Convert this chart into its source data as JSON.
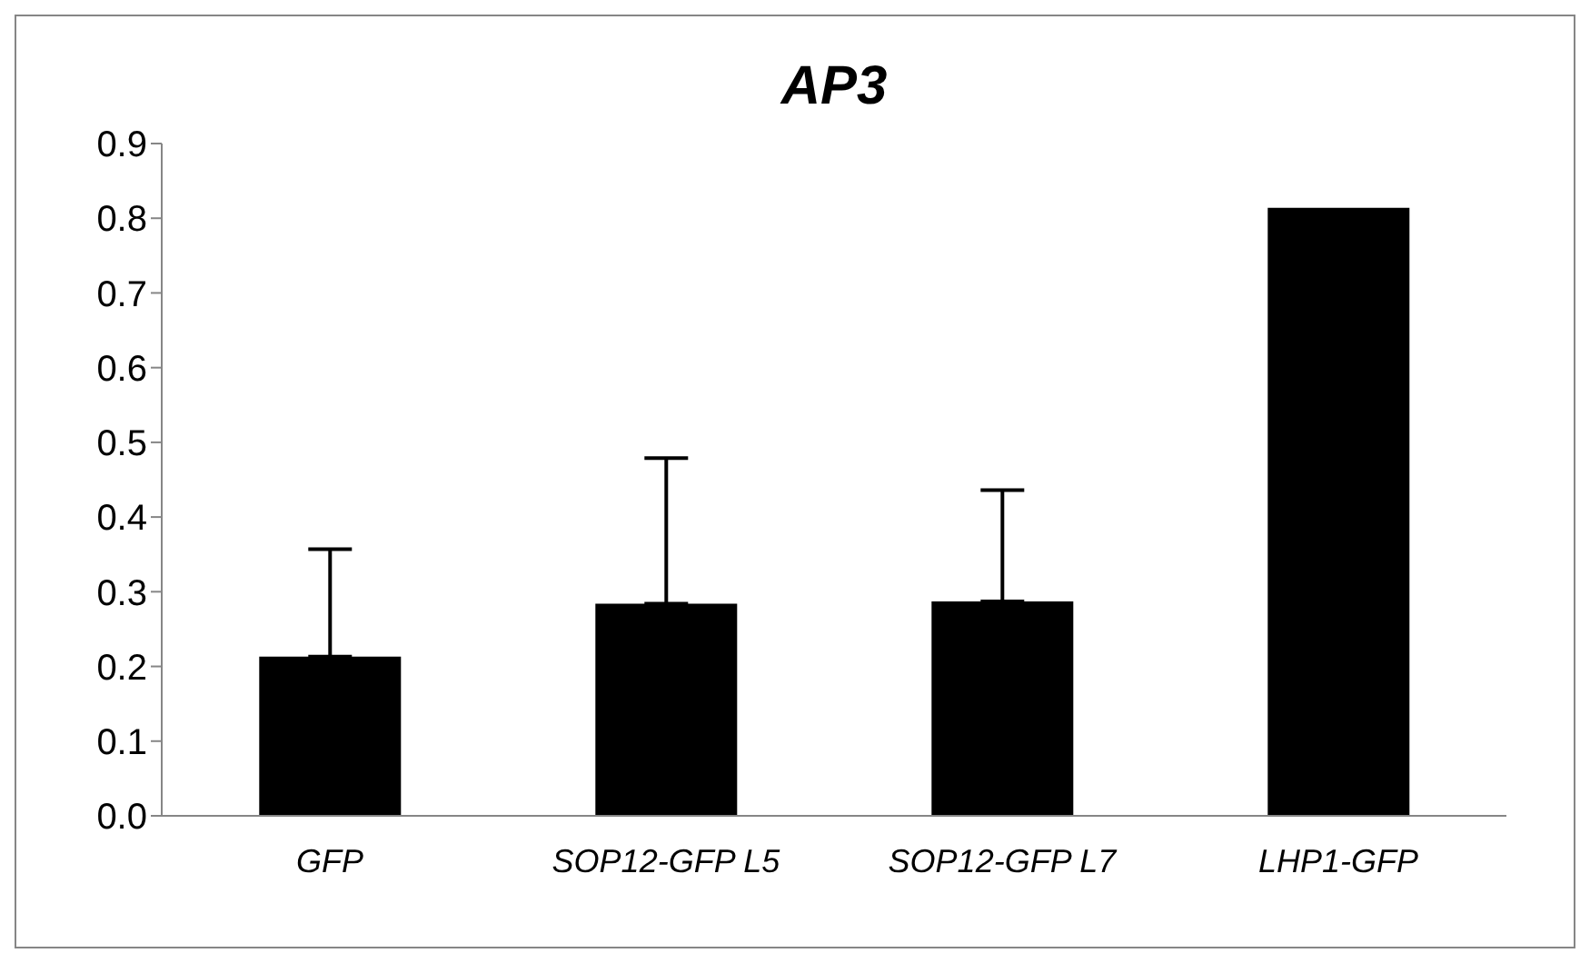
{
  "chart_data": {
    "type": "bar",
    "title": "AP3",
    "categories": [
      "GFP",
      "SOP12-GFP L5",
      "SOP12-GFP L7",
      "LHP1-GFP"
    ],
    "values": [
      0.213,
      0.284,
      0.287,
      0.814
    ],
    "errors": [
      [
        0.213,
        0.357
      ],
      [
        0.284,
        0.479
      ],
      [
        0.287,
        0.436
      ],
      null
    ],
    "color": "#000000",
    "ylim": [
      0,
      0.9
    ],
    "yticks": [
      {
        "value": 0,
        "label": "0.0"
      },
      0.1,
      0.2,
      0.3,
      0.4,
      0.5,
      0.6,
      0.7,
      0.8,
      0.9
    ],
    "grid": false,
    "legend": false
  }
}
